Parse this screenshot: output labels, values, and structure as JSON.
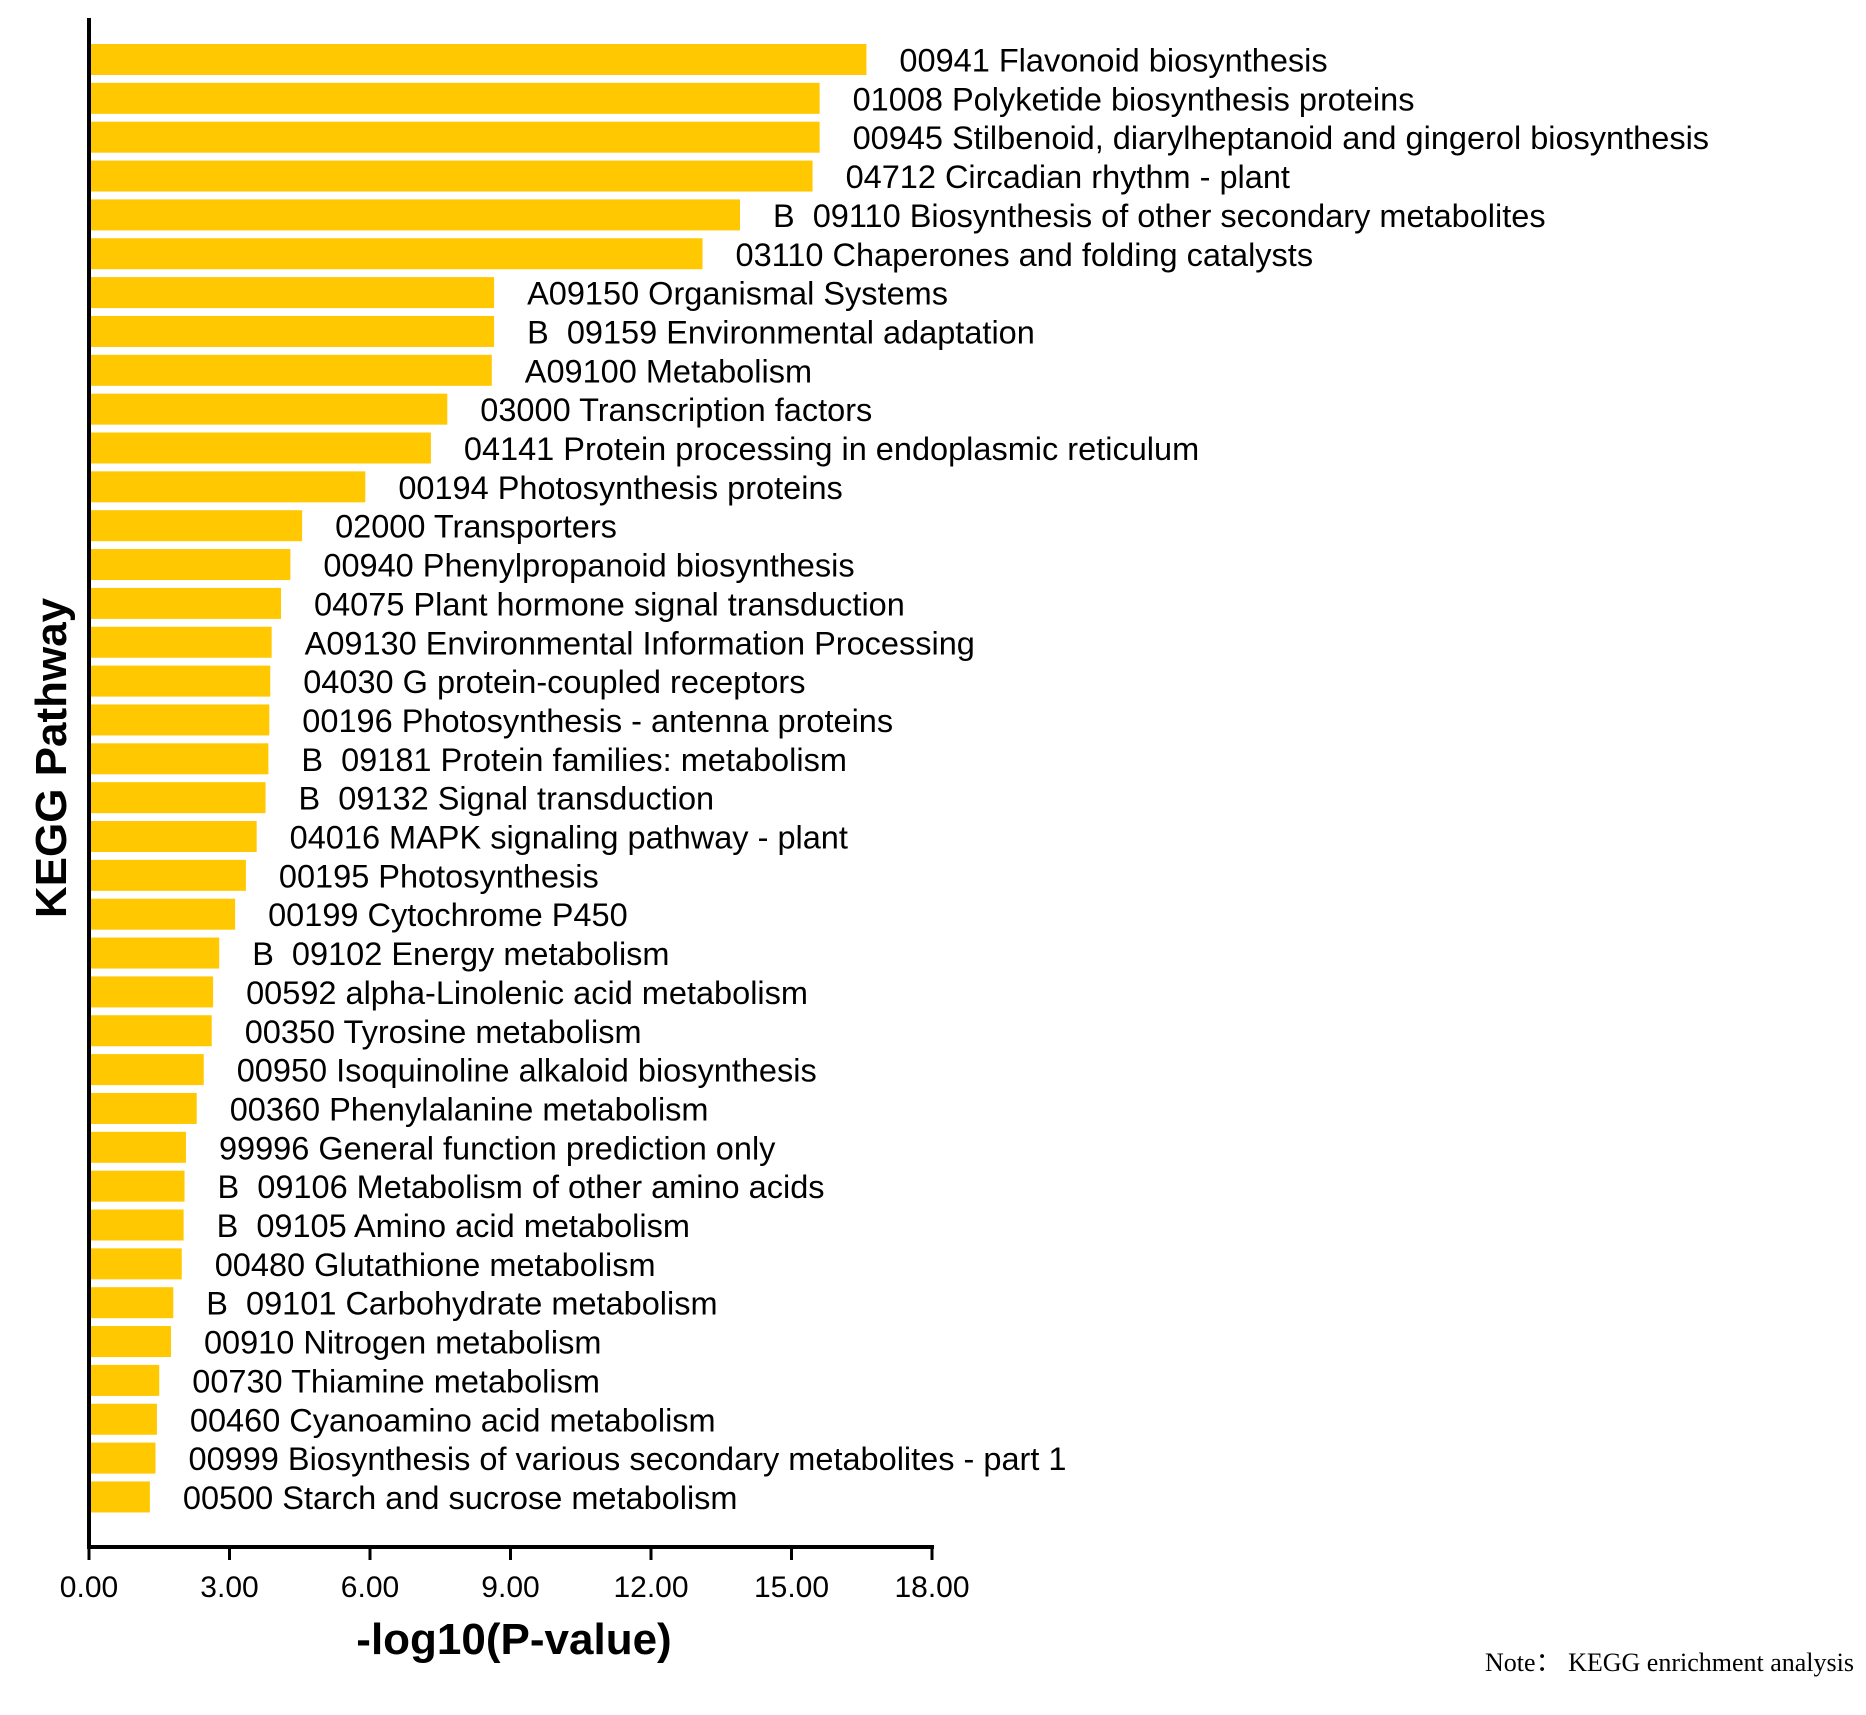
{
  "chart_data": {
    "type": "bar",
    "orientation": "horizontal",
    "xlabel": "-log10(P-value)",
    "ylabel": "KEGG Pathway",
    "xlim": [
      0,
      18
    ],
    "xticks": [
      "0.00",
      "3.00",
      "6.00",
      "9.00",
      "12.00",
      "15.00",
      "18.00"
    ],
    "bar_color": "#FFC800",
    "note": "Note： KEGG enrichment analysis",
    "categories": [
      "00941 Flavonoid biosynthesis",
      "01008 Polyketide biosynthesis proteins",
      "00945 Stilbenoid, diarylheptanoid and gingerol biosynthesis",
      "04712 Circadian rhythm - plant",
      "B  09110 Biosynthesis of other secondary metabolites",
      "03110 Chaperones and folding catalysts",
      "A09150 Organismal Systems",
      "B  09159 Environmental adaptation",
      "A09100 Metabolism",
      "03000 Transcription factors",
      "04141 Protein processing in endoplasmic reticulum",
      "00194 Photosynthesis proteins",
      "02000 Transporters",
      "00940 Phenylpropanoid biosynthesis",
      "04075 Plant hormone signal transduction",
      "A09130 Environmental Information Processing",
      "04030 G protein-coupled receptors",
      "00196 Photosynthesis - antenna proteins",
      "B  09181 Protein families: metabolism",
      "B  09132 Signal transduction",
      "04016 MAPK signaling pathway - plant",
      "00195 Photosynthesis",
      "00199 Cytochrome P450",
      "B  09102 Energy metabolism",
      "00592 alpha-Linolenic acid metabolism",
      "00350 Tyrosine metabolism",
      "00950 Isoquinoline alkaloid biosynthesis",
      "00360 Phenylalanine metabolism",
      "99996 General function prediction only",
      "B  09106 Metabolism of other amino acids",
      "B  09105 Amino acid metabolism",
      "00480 Glutathione metabolism",
      "B  09101 Carbohydrate metabolism",
      "00910 Nitrogen metabolism",
      "00730 Thiamine metabolism",
      "00460 Cyanoamino acid metabolism",
      "00999 Biosynthesis of various secondary metabolites - part 1",
      "00500 Starch and sucrose metabolism"
    ],
    "values": [
      16.6,
      15.6,
      15.6,
      15.45,
      13.9,
      13.1,
      8.65,
      8.65,
      8.6,
      7.65,
      7.3,
      5.9,
      4.55,
      4.3,
      4.1,
      3.9,
      3.87,
      3.85,
      3.83,
      3.77,
      3.58,
      3.35,
      3.12,
      2.78,
      2.65,
      2.62,
      2.45,
      2.3,
      2.07,
      2.04,
      2.02,
      1.98,
      1.8,
      1.75,
      1.5,
      1.45,
      1.42,
      1.3
    ]
  }
}
